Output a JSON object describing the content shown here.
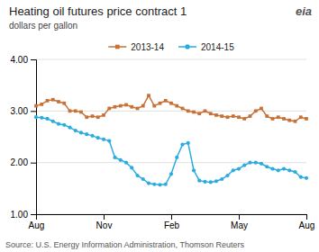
{
  "chart_data": {
    "type": "line",
    "title": "Heating oil futures price contract 1",
    "subtitle": "dollars per gallon",
    "source": "Source: U.S. Energy Information Administration, Thomson Reuters",
    "annotations": [
      "eia"
    ],
    "categories": [
      "Aug",
      null,
      null,
      null,
      null,
      null,
      null,
      null,
      null,
      null,
      null,
      null,
      "Nov",
      null,
      null,
      null,
      null,
      null,
      null,
      null,
      null,
      null,
      null,
      null,
      "Feb",
      null,
      null,
      null,
      null,
      null,
      null,
      null,
      null,
      null,
      null,
      null,
      "May",
      null,
      null,
      null,
      null,
      null,
      null,
      null,
      null,
      null,
      null,
      null,
      "Aug"
    ],
    "series": [
      {
        "name": "2013-14",
        "color": "#c87137",
        "marker": "square",
        "values": [
          3.1,
          3.13,
          3.2,
          3.22,
          3.18,
          3.15,
          3.0,
          3.0,
          2.98,
          2.88,
          2.9,
          2.88,
          2.92,
          3.05,
          3.08,
          3.1,
          3.12,
          3.08,
          3.05,
          3.1,
          3.3,
          3.1,
          3.15,
          3.2,
          3.15,
          3.1,
          3.05,
          3.0,
          2.98,
          2.95,
          3.0,
          2.95,
          2.92,
          2.9,
          2.88,
          2.9,
          2.88,
          2.85,
          2.9,
          3.0,
          3.05,
          2.9,
          2.85,
          2.88,
          2.85,
          2.82,
          2.8,
          2.88,
          2.85
        ]
      },
      {
        "name": "2014-15",
        "color": "#2aace2",
        "marker": "circle",
        "values": [
          2.88,
          2.87,
          2.85,
          2.8,
          2.75,
          2.73,
          2.68,
          2.62,
          2.58,
          2.55,
          2.52,
          2.48,
          2.45,
          2.42,
          2.1,
          2.05,
          2.0,
          1.9,
          1.75,
          1.68,
          1.6,
          1.58,
          1.57,
          1.58,
          1.78,
          2.1,
          2.35,
          2.38,
          1.85,
          1.65,
          1.63,
          1.62,
          1.64,
          1.68,
          1.75,
          1.85,
          1.88,
          1.95,
          2.0,
          2.0,
          1.98,
          1.92,
          1.88,
          1.85,
          1.88,
          1.85,
          1.82,
          1.72,
          1.7
        ]
      }
    ],
    "ylim": [
      1.0,
      4.0
    ],
    "yticks": [
      {
        "value": 1.0,
        "label": "1.00"
      },
      {
        "value": 2.0,
        "label": "2.00"
      },
      {
        "value": 3.0,
        "label": "3.00"
      },
      {
        "value": 4.0,
        "label": "4.00"
      }
    ],
    "grid": true,
    "legend": "top"
  }
}
